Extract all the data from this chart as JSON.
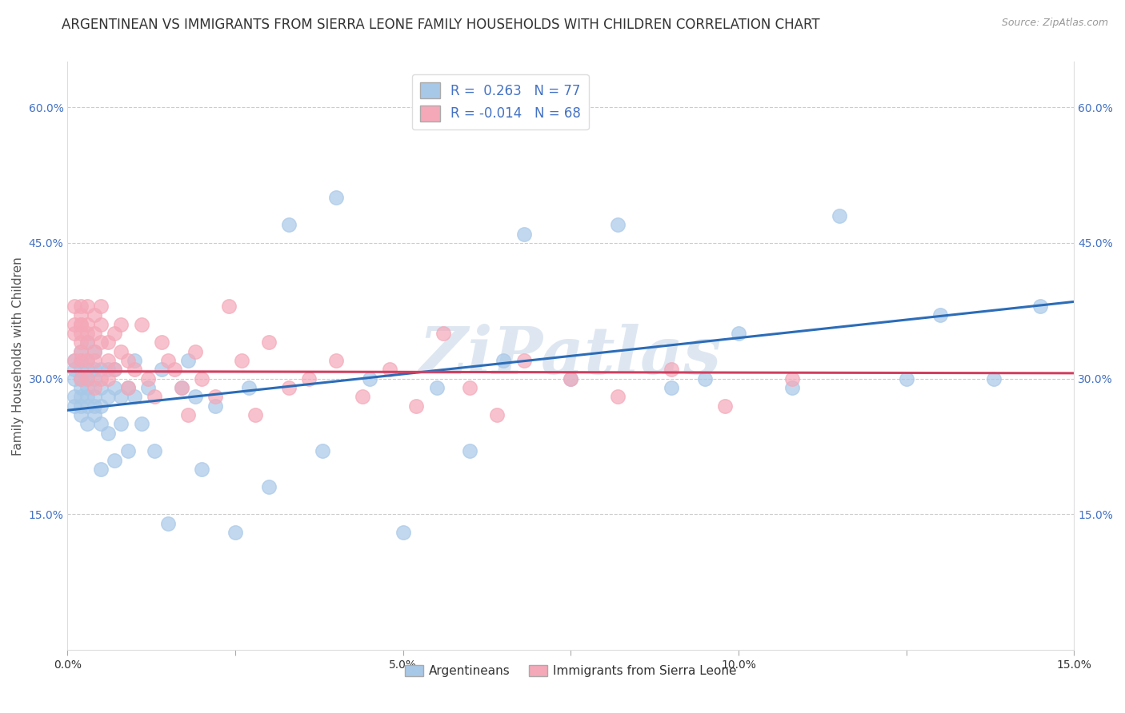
{
  "title": "ARGENTINEAN VS IMMIGRANTS FROM SIERRA LEONE FAMILY HOUSEHOLDS WITH CHILDREN CORRELATION CHART",
  "source": "Source: ZipAtlas.com",
  "ylabel": "Family Households with Children",
  "xlim": [
    0.0,
    0.15
  ],
  "ylim": [
    0.0,
    0.65
  ],
  "xticks": [
    0.0,
    0.025,
    0.05,
    0.075,
    0.1,
    0.125,
    0.15
  ],
  "xtick_labels": [
    "0.0%",
    "",
    "5.0%",
    "",
    "10.0%",
    "",
    "15.0%"
  ],
  "yticks": [
    0.0,
    0.15,
    0.3,
    0.45,
    0.6
  ],
  "ytick_labels": [
    "",
    "15.0%",
    "30.0%",
    "45.0%",
    "60.0%"
  ],
  "right_ytick_labels": [
    "",
    "15.0%",
    "30.0%",
    "45.0%",
    "60.0%"
  ],
  "R_blue": 0.263,
  "N_blue": 77,
  "R_pink": -0.014,
  "N_pink": 68,
  "blue_color": "#A8C8E8",
  "pink_color": "#F4A8B8",
  "blue_line_color": "#2B6CB8",
  "pink_line_color": "#D04060",
  "legend_label_blue": "Argentineans",
  "legend_label_pink": "Immigrants from Sierra Leone",
  "blue_x": [
    0.001,
    0.001,
    0.001,
    0.001,
    0.001,
    0.002,
    0.002,
    0.002,
    0.002,
    0.002,
    0.002,
    0.002,
    0.002,
    0.003,
    0.003,
    0.003,
    0.003,
    0.003,
    0.003,
    0.003,
    0.003,
    0.004,
    0.004,
    0.004,
    0.004,
    0.004,
    0.004,
    0.005,
    0.005,
    0.005,
    0.005,
    0.005,
    0.006,
    0.006,
    0.006,
    0.007,
    0.007,
    0.007,
    0.008,
    0.008,
    0.009,
    0.009,
    0.01,
    0.01,
    0.011,
    0.012,
    0.013,
    0.014,
    0.015,
    0.017,
    0.018,
    0.019,
    0.02,
    0.022,
    0.025,
    0.027,
    0.03,
    0.033,
    0.038,
    0.04,
    0.045,
    0.05,
    0.055,
    0.06,
    0.065,
    0.068,
    0.075,
    0.082,
    0.09,
    0.095,
    0.1,
    0.108,
    0.115,
    0.125,
    0.13,
    0.138,
    0.145
  ],
  "blue_y": [
    0.3,
    0.28,
    0.32,
    0.27,
    0.31,
    0.29,
    0.31,
    0.27,
    0.3,
    0.28,
    0.32,
    0.26,
    0.33,
    0.29,
    0.31,
    0.27,
    0.3,
    0.28,
    0.32,
    0.25,
    0.34,
    0.28,
    0.3,
    0.26,
    0.31,
    0.27,
    0.33,
    0.29,
    0.31,
    0.25,
    0.27,
    0.2,
    0.28,
    0.31,
    0.24,
    0.29,
    0.31,
    0.21,
    0.28,
    0.25,
    0.29,
    0.22,
    0.28,
    0.32,
    0.25,
    0.29,
    0.22,
    0.31,
    0.14,
    0.29,
    0.32,
    0.28,
    0.2,
    0.27,
    0.13,
    0.29,
    0.18,
    0.47,
    0.22,
    0.5,
    0.3,
    0.13,
    0.29,
    0.22,
    0.32,
    0.46,
    0.3,
    0.47,
    0.29,
    0.3,
    0.35,
    0.29,
    0.48,
    0.3,
    0.37,
    0.3,
    0.38
  ],
  "pink_x": [
    0.001,
    0.001,
    0.001,
    0.001,
    0.002,
    0.002,
    0.002,
    0.002,
    0.002,
    0.002,
    0.002,
    0.002,
    0.002,
    0.003,
    0.003,
    0.003,
    0.003,
    0.003,
    0.003,
    0.004,
    0.004,
    0.004,
    0.004,
    0.004,
    0.005,
    0.005,
    0.005,
    0.005,
    0.006,
    0.006,
    0.006,
    0.007,
    0.007,
    0.008,
    0.008,
    0.009,
    0.009,
    0.01,
    0.011,
    0.012,
    0.013,
    0.014,
    0.015,
    0.016,
    0.017,
    0.018,
    0.019,
    0.02,
    0.022,
    0.024,
    0.026,
    0.028,
    0.03,
    0.033,
    0.036,
    0.04,
    0.044,
    0.048,
    0.052,
    0.056,
    0.06,
    0.064,
    0.068,
    0.075,
    0.082,
    0.09,
    0.098,
    0.108
  ],
  "pink_y": [
    0.38,
    0.35,
    0.32,
    0.36,
    0.38,
    0.36,
    0.34,
    0.32,
    0.3,
    0.37,
    0.35,
    0.33,
    0.36,
    0.35,
    0.38,
    0.32,
    0.34,
    0.36,
    0.3,
    0.35,
    0.37,
    0.33,
    0.29,
    0.32,
    0.36,
    0.34,
    0.3,
    0.38,
    0.34,
    0.32,
    0.3,
    0.35,
    0.31,
    0.33,
    0.36,
    0.32,
    0.29,
    0.31,
    0.36,
    0.3,
    0.28,
    0.34,
    0.32,
    0.31,
    0.29,
    0.26,
    0.33,
    0.3,
    0.28,
    0.38,
    0.32,
    0.26,
    0.34,
    0.29,
    0.3,
    0.32,
    0.28,
    0.31,
    0.27,
    0.35,
    0.29,
    0.26,
    0.32,
    0.3,
    0.28,
    0.31,
    0.27,
    0.3
  ],
  "watermark": "ZiPatlas",
  "background_color": "#ffffff",
  "grid_color": "#cccccc",
  "title_fontsize": 12,
  "axis_label_fontsize": 11,
  "tick_fontsize": 10,
  "legend_fontsize": 12
}
